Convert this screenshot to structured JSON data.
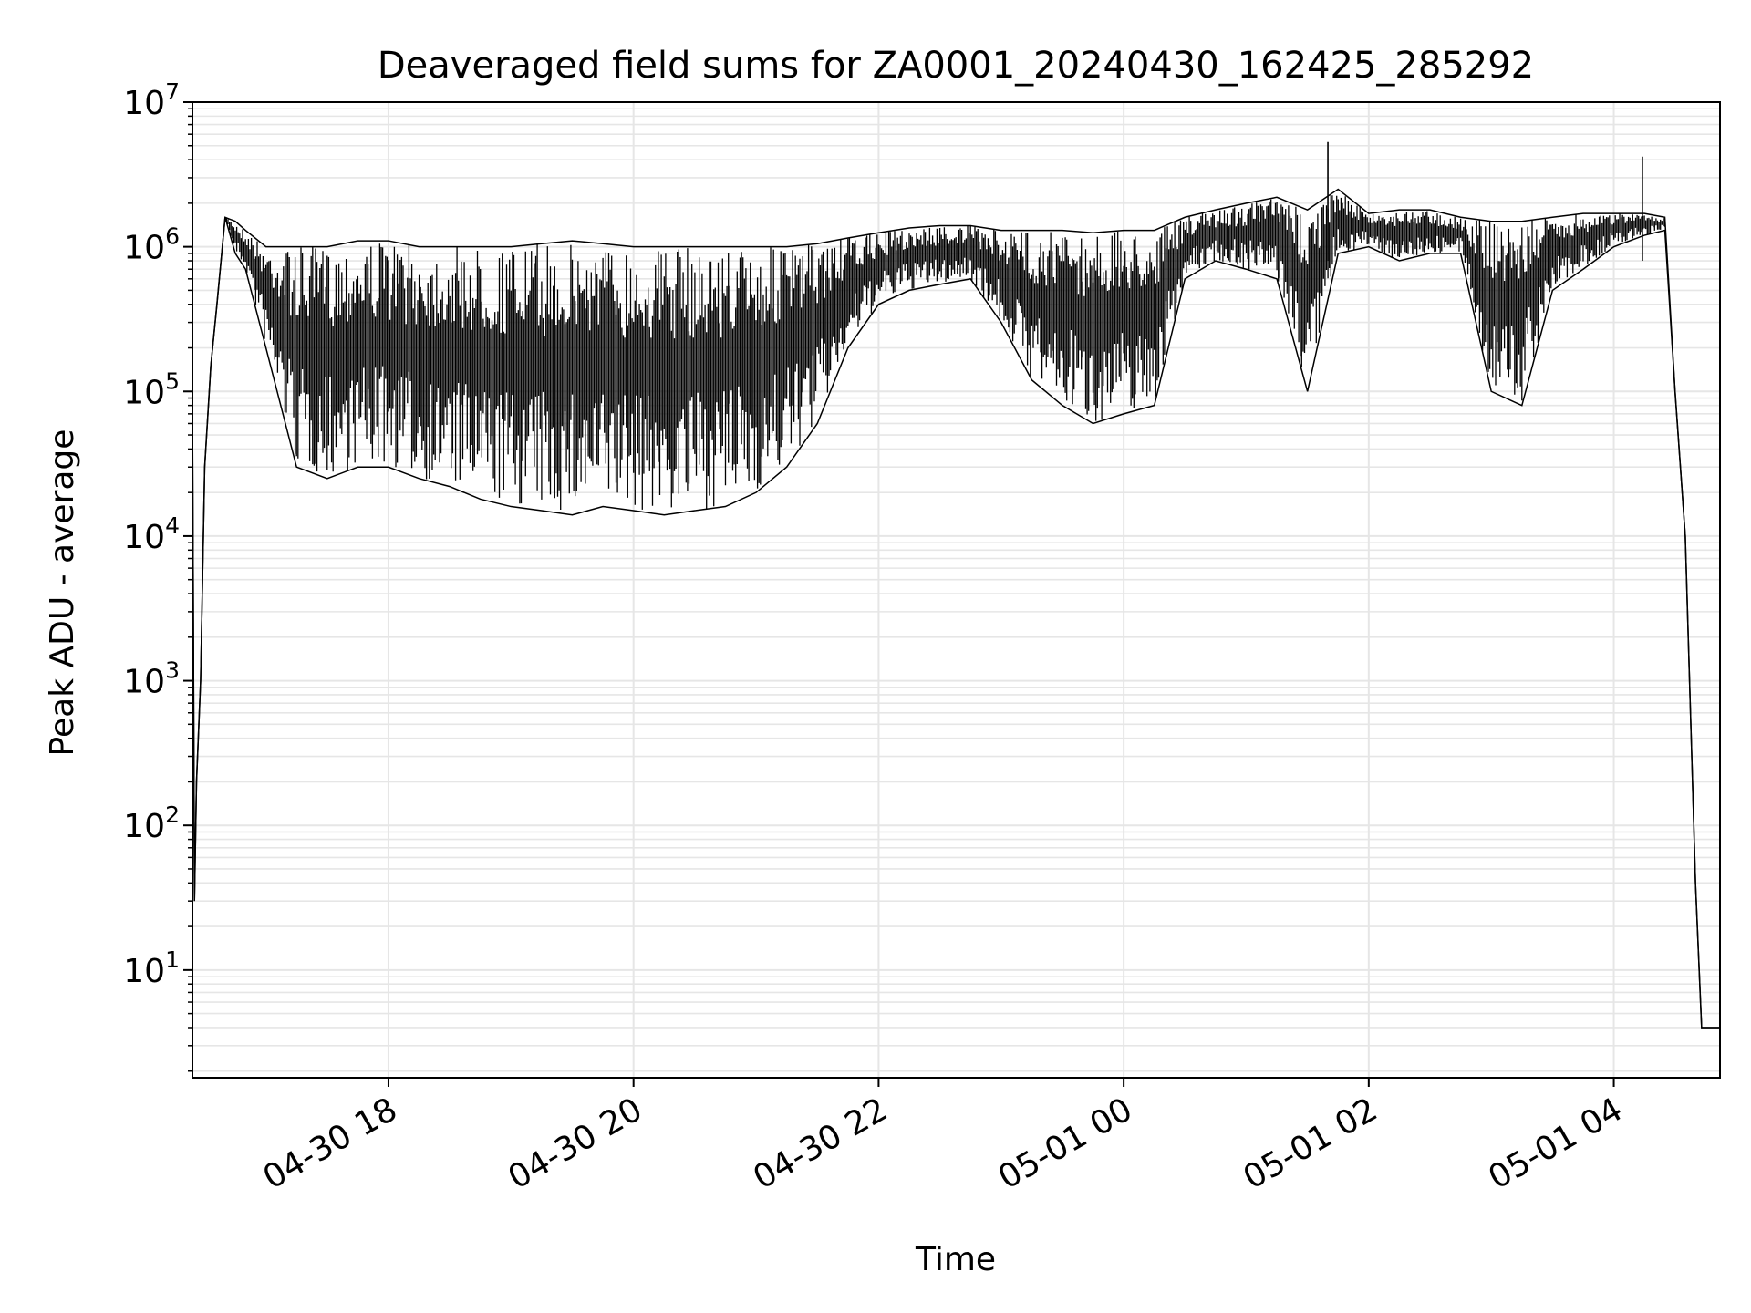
{
  "chart_data": {
    "type": "line",
    "title": "Deaveraged field sums for ZA0001_20240430_162425_285292",
    "xlabel": "Time",
    "ylabel": "Peak ADU - average",
    "yscale": "log",
    "ylim": [
      1.8,
      10000000
    ],
    "xlim": [
      "2024-04-30 16:24",
      "2024-05-01 04:52"
    ],
    "x_ticks": [
      {
        "label": "04-30 18",
        "value": "2024-04-30 18:00"
      },
      {
        "label": "04-30 20",
        "value": "2024-04-30 20:00"
      },
      {
        "label": "04-30 22",
        "value": "2024-04-30 22:00"
      },
      {
        "label": "05-01 00",
        "value": "2024-05-01 00:00"
      },
      {
        "label": "05-01 02",
        "value": "2024-05-01 02:00"
      },
      {
        "label": "05-01 04",
        "value": "2024-05-01 04:00"
      }
    ],
    "y_ticks": [
      {
        "base": "10",
        "exp": "1",
        "value": 10
      },
      {
        "base": "10",
        "exp": "2",
        "value": 100
      },
      {
        "base": "10",
        "exp": "3",
        "value": 1000
      },
      {
        "base": "10",
        "exp": "4",
        "value": 10000
      },
      {
        "base": "10",
        "exp": "5",
        "value": 100000
      },
      {
        "base": "10",
        "exp": "6",
        "value": 1000000
      },
      {
        "base": "10",
        "exp": "7",
        "value": 10000000
      }
    ],
    "grid": true,
    "line_color": "#000000",
    "grid_color": "#e6e6e6",
    "series": [
      {
        "x": [
          "2024-04-30 16:24",
          "2024-04-30 16:25",
          "2024-04-30 16:26",
          "2024-04-30 16:28",
          "2024-04-30 16:30",
          "2024-04-30 16:33",
          "2024-04-30 16:36",
          "2024-04-30 16:40",
          "2024-04-30 16:45",
          "2024-04-30 16:50",
          "2024-04-30 17:00",
          "2024-04-30 17:15",
          "2024-04-30 17:30",
          "2024-04-30 17:45",
          "2024-04-30 18:00",
          "2024-04-30 18:15",
          "2024-04-30 18:30",
          "2024-04-30 18:45",
          "2024-04-30 19:00",
          "2024-04-30 19:15",
          "2024-04-30 19:30",
          "2024-04-30 19:45",
          "2024-04-30 20:00",
          "2024-04-30 20:15",
          "2024-04-30 20:30",
          "2024-04-30 20:45",
          "2024-04-30 21:00",
          "2024-04-30 21:15",
          "2024-04-30 21:30",
          "2024-04-30 21:45",
          "2024-04-30 22:00",
          "2024-04-30 22:15",
          "2024-04-30 22:30",
          "2024-04-30 22:45",
          "2024-04-30 23:00",
          "2024-04-30 23:15",
          "2024-04-30 23:30",
          "2024-04-30 23:45",
          "2024-05-01 00:00",
          "2024-05-01 00:15",
          "2024-05-01 00:30",
          "2024-05-01 00:45",
          "2024-05-01 01:00",
          "2024-05-01 01:15",
          "2024-05-01 01:30",
          "2024-05-01 01:45",
          "2024-05-01 02:00",
          "2024-05-01 02:15",
          "2024-05-01 02:30",
          "2024-05-01 02:45",
          "2024-05-01 03:00",
          "2024-05-01 03:15",
          "2024-05-01 03:30",
          "2024-05-01 03:45",
          "2024-05-01 04:00",
          "2024-05-01 04:15",
          "2024-05-01 04:25",
          "2024-05-01 04:30",
          "2024-05-01 04:35",
          "2024-05-01 04:40",
          "2024-05-01 04:43",
          "2024-05-01 04:52"
        ],
        "y": [
          100000,
          30,
          200,
          1000,
          30000,
          150000,
          400000,
          1600000,
          900000,
          700000,
          200000,
          30000,
          25000,
          30000,
          30000,
          25000,
          22000,
          18000,
          16000,
          15000,
          14000,
          16000,
          15000,
          14000,
          15000,
          16000,
          20000,
          30000,
          60000,
          200000,
          400000,
          500000,
          550000,
          600000,
          300000,
          120000,
          80000,
          60000,
          70000,
          80000,
          600000,
          800000,
          700000,
          600000,
          100000,
          900000,
          1000000,
          800000,
          900000,
          900000,
          100000,
          80000,
          500000,
          700000,
          1000000,
          1200000,
          1300000,
          100000,
          10000,
          40,
          4,
          4
        ],
        "hi": [
          100000,
          30,
          200,
          1000,
          30000,
          150000,
          400000,
          1600000,
          1500000,
          1300000,
          1000000,
          1000000,
          1000000,
          1100000,
          1100000,
          1000000,
          1000000,
          1000000,
          1000000,
          1050000,
          1100000,
          1050000,
          1000000,
          1000000,
          1000000,
          1000000,
          1000000,
          1000000,
          1050000,
          1150000,
          1250000,
          1350000,
          1400000,
          1400000,
          1300000,
          1300000,
          1300000,
          1250000,
          1300000,
          1300000,
          1600000,
          1800000,
          2000000,
          2200000,
          1800000,
          2500000,
          1700000,
          1800000,
          1800000,
          1600000,
          1500000,
          1500000,
          1600000,
          1700000,
          1700000,
          1700000,
          1600000,
          100000,
          10000,
          40,
          4,
          4
        ]
      }
    ],
    "spikes": [
      {
        "x": "2024-05-01 01:40",
        "y": 5300000
      },
      {
        "x": "2024-05-01 04:14",
        "y": 4200000
      }
    ]
  }
}
